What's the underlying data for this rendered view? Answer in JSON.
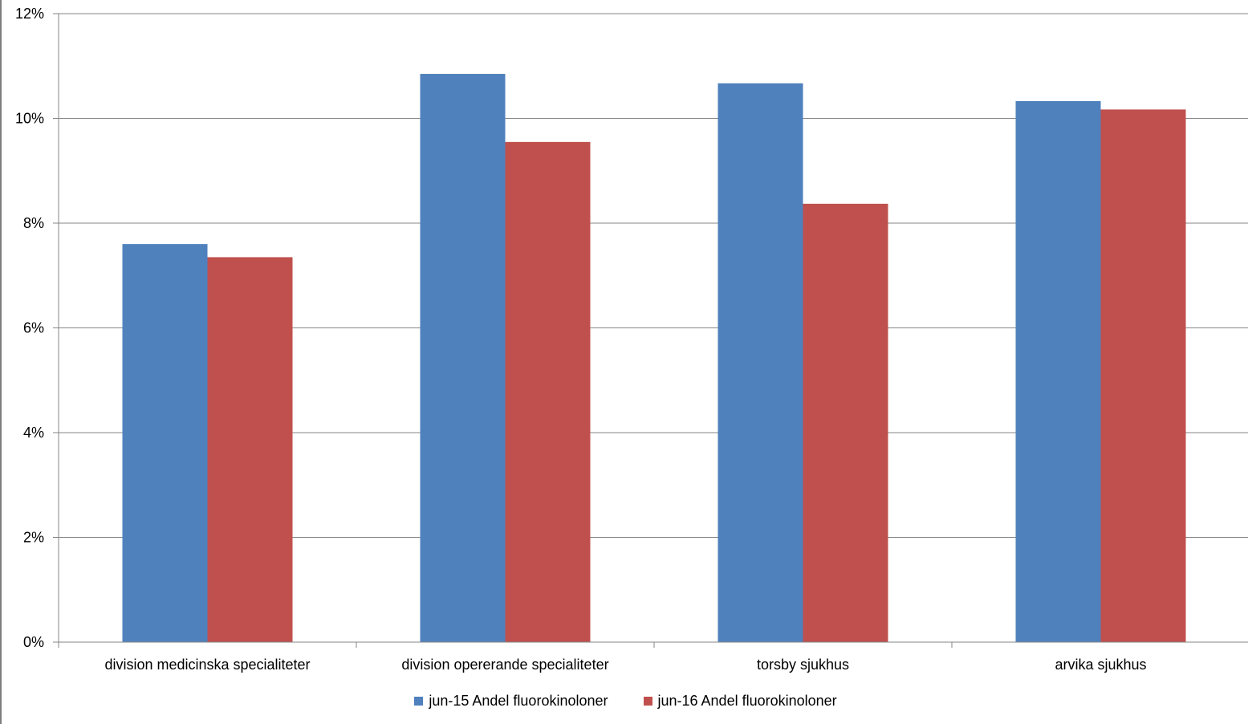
{
  "chart_data": {
    "type": "bar",
    "title": "",
    "xlabel": "",
    "ylabel": "",
    "categories": [
      "division medicinska specialiteter",
      "division opererande specialiteter",
      "torsby sjukhus",
      "arvika sjukhus"
    ],
    "series": [
      {
        "name": "jun-15 Andel fluorokinoloner",
        "color": "#4f81bd",
        "values": [
          7.6,
          10.85,
          10.67,
          10.33
        ]
      },
      {
        "name": "jun-16 Andel fluorokinoloner",
        "color": "#c0504d",
        "values": [
          7.35,
          9.55,
          8.37,
          10.17
        ]
      }
    ],
    "ylim": [
      0,
      12
    ],
    "yticks": [
      "0%",
      "2%",
      "4%",
      "6%",
      "8%",
      "10%",
      "12%"
    ],
    "ytick_values": [
      0,
      2,
      4,
      6,
      8,
      10,
      12
    ],
    "grid": true,
    "legend_position": "bottom"
  }
}
